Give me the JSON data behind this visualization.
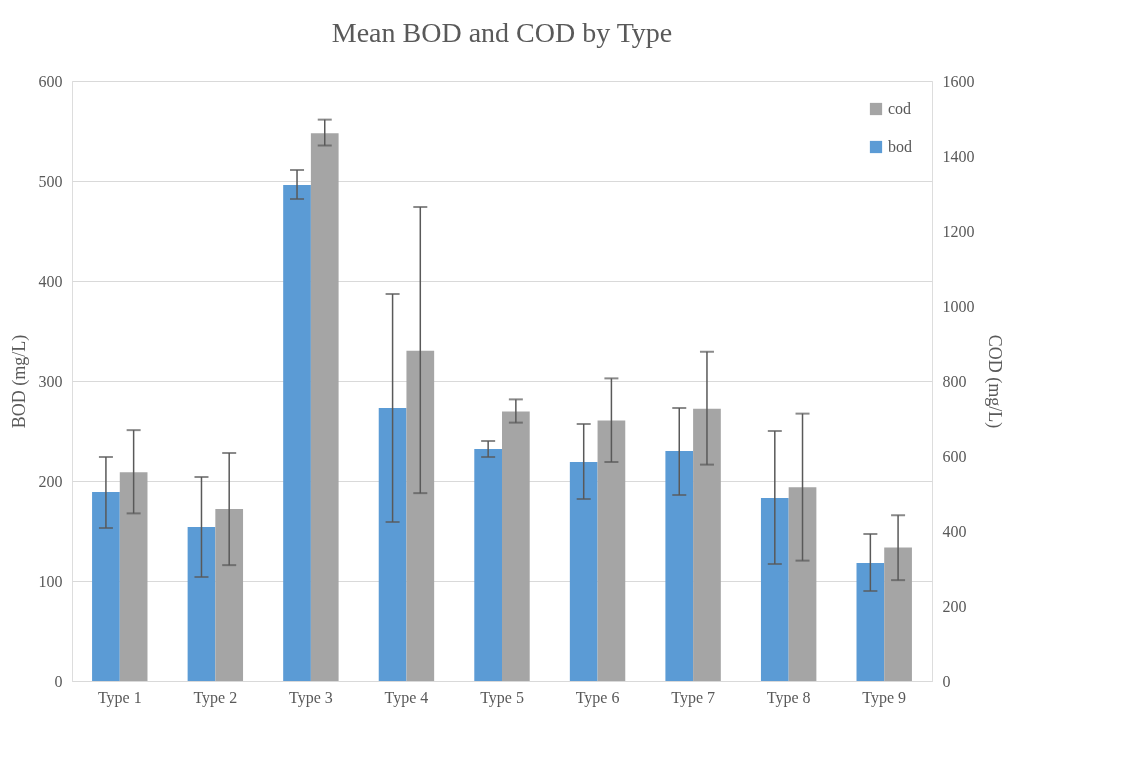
{
  "chart_data": {
    "type": "bar",
    "title": "Mean BOD and COD by Type",
    "ylabel": "BOD (mg/L)",
    "y2label": "COD (mg/L)",
    "categories": [
      "Type 1",
      "Type 2",
      "Type 3",
      "Type 4",
      "Type 5",
      "Type 6",
      "Type 7",
      "Type 8",
      "Type 9"
    ],
    "series": [
      {
        "name": "bod",
        "color": "#5b9bd5",
        "values": [
          189,
          154,
          496,
          273,
          232,
          219,
          230,
          183,
          118
        ],
        "errors": [
          [
            153,
            224
          ],
          [
            104,
            204
          ],
          [
            482,
            511
          ],
          [
            159,
            387
          ],
          [
            224,
            240
          ],
          [
            182,
            257
          ],
          [
            186,
            273
          ],
          [
            117,
            250
          ],
          [
            90,
            147
          ]
        ]
      },
      {
        "name": "cod",
        "color": "#a5a5a5",
        "axis": "y2",
        "values": [
          557,
          459,
          1461,
          881,
          719,
          695,
          726,
          517,
          356
        ],
        "errors": [
          [
            447,
            669
          ],
          [
            309,
            608
          ],
          [
            1428,
            1497
          ],
          [
            501,
            1264
          ],
          [
            689,
            751
          ],
          [
            584,
            807
          ],
          [
            577,
            878
          ],
          [
            321,
            713
          ],
          [
            269,
            442
          ]
        ]
      }
    ],
    "ylim": [
      0,
      600
    ],
    "yticks": [
      0,
      100,
      200,
      300,
      400,
      500,
      600
    ],
    "y2lim": [
      0,
      1600
    ],
    "y2ticks": [
      0,
      200,
      400,
      600,
      800,
      1000,
      1200,
      1400,
      1600
    ],
    "grid": "y",
    "legend": "top right"
  }
}
